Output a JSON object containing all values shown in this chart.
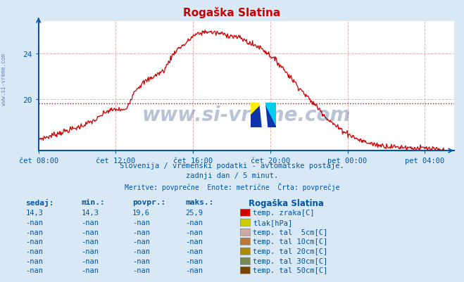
{
  "title": "Rogaška Slatina",
  "title_color": "#cc0000",
  "bg_color": "#d8e8f4",
  "plot_bg_color": "#ffffff",
  "line_color": "#cc0000",
  "avg_line_color": "#cc0000",
  "avg_value": 19.6,
  "yticks": [
    20,
    24
  ],
  "ylim": [
    15.5,
    26.8
  ],
  "xlim_hours": [
    0,
    21.5
  ],
  "xtick_hours": [
    0,
    4,
    8,
    12,
    16,
    20
  ],
  "xlabels": [
    "čet 08:00",
    "čet 12:00",
    "čet 16:00",
    "čet 20:00",
    "pet 00:00",
    "pet 04:00"
  ],
  "xlabel_color": "#0055aa",
  "ylabel_color": "#0055aa",
  "grid_color": "#e8b0b0",
  "axis_color": "#0055aa",
  "watermark_text": "www.si-vreme.com",
  "watermark_color": "#1a3a7a",
  "subtitle1": "Slovenija / vremenski podatki - avtomatske postaje.",
  "subtitle2": "zadnji dan / 5 minut.",
  "subtitle3": "Meritve: povprečne  Enote: metrične  Črta: povprečje",
  "subtitle_color": "#0055aa",
  "table_header_color": "#0055aa",
  "table_data_color": "#0055aa",
  "legend_items": [
    {
      "label": "temp. zraka[C]",
      "color": "#cc0000"
    },
    {
      "label": "tlak[hPa]",
      "color": "#cccc00"
    },
    {
      "label": "temp. tal  5cm[C]",
      "color": "#ccaaaa"
    },
    {
      "label": "temp. tal 10cm[C]",
      "color": "#bb7733"
    },
    {
      "label": "temp. tal 20cm[C]",
      "color": "#aa8800"
    },
    {
      "label": "temp. tal 30cm[C]",
      "color": "#778855"
    },
    {
      "label": "temp. tal 50cm[C]",
      "color": "#774400"
    }
  ],
  "table_cols": [
    "sedaj:",
    "min.:",
    "povpr.:",
    "maks.:"
  ],
  "table_rows": [
    [
      "14,3",
      "14,3",
      "19,6",
      "25,9"
    ],
    [
      "-nan",
      "-nan",
      "-nan",
      "-nan"
    ],
    [
      "-nan",
      "-nan",
      "-nan",
      "-nan"
    ],
    [
      "-nan",
      "-nan",
      "-nan",
      "-nan"
    ],
    [
      "-nan",
      "-nan",
      "-nan",
      "-nan"
    ],
    [
      "-nan",
      "-nan",
      "-nan",
      "-nan"
    ],
    [
      "-nan",
      "-nan",
      "-nan",
      "-nan"
    ]
  ],
  "station_name": "Rogaška Slatina"
}
